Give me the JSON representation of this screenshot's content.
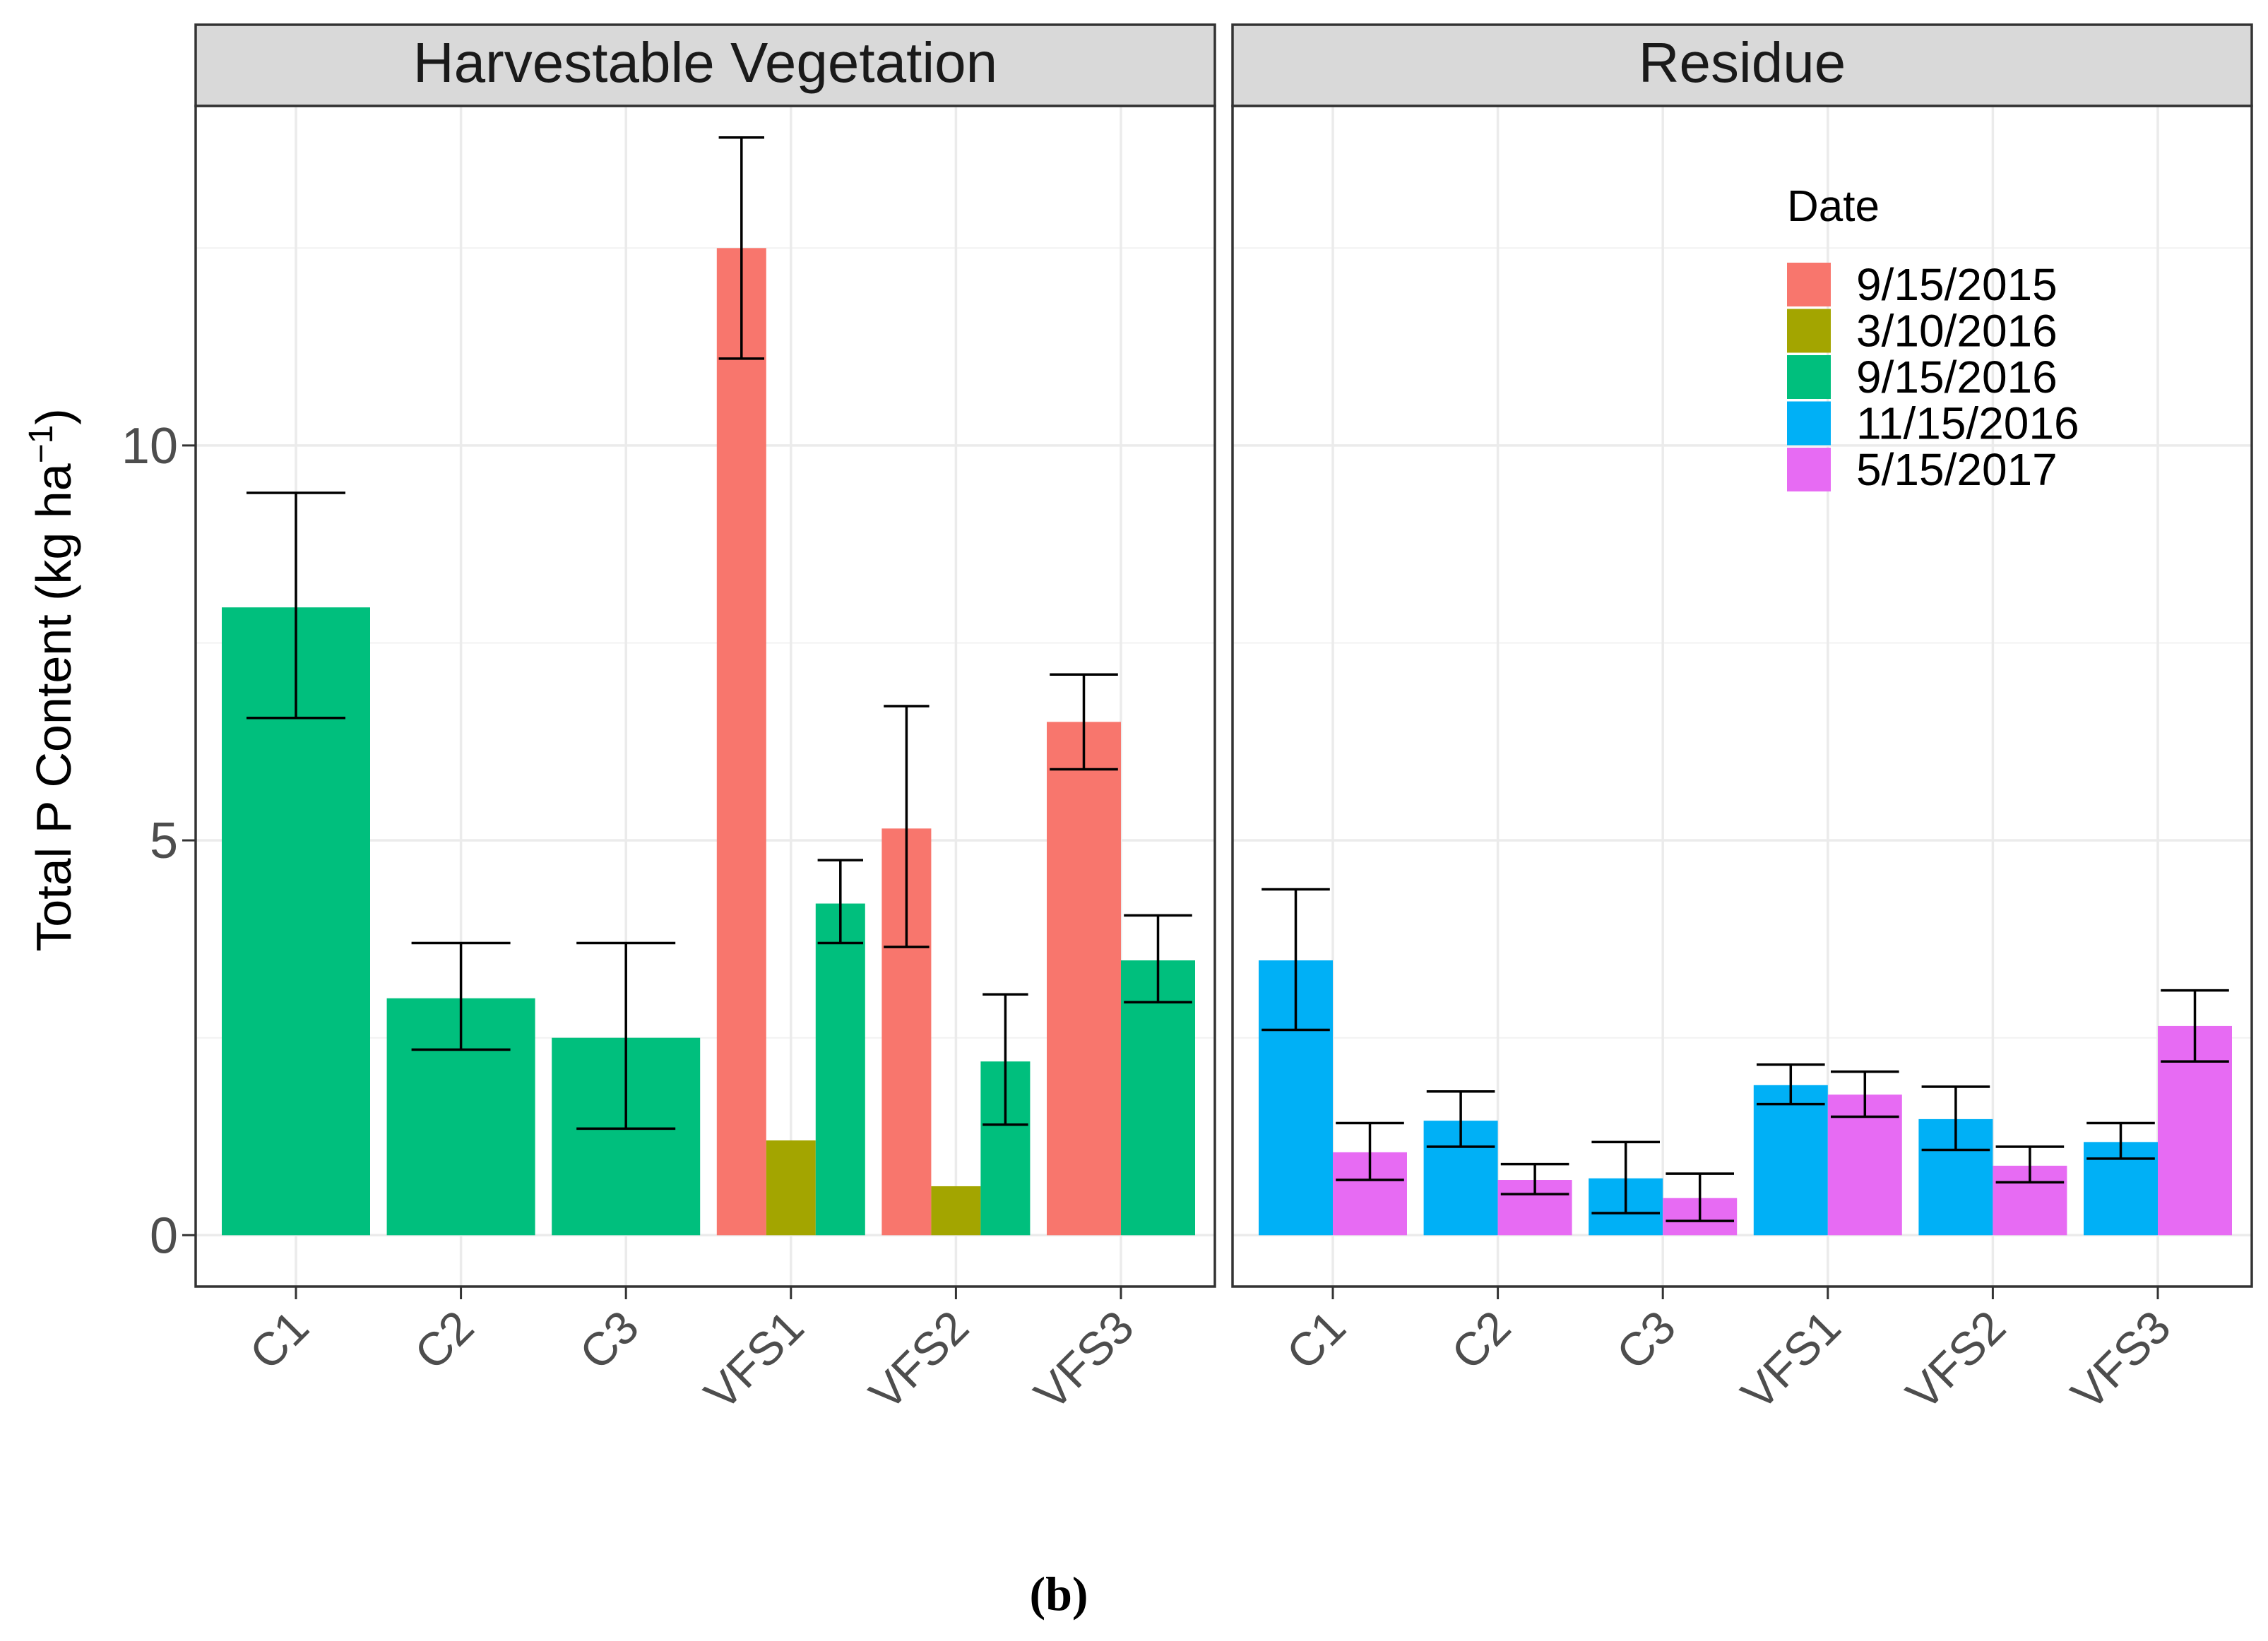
{
  "chart_data": {
    "type": "bar",
    "ylabel": "Total P Content (kg ha",
    "ylabel_superscript": "−1",
    "ylabel_close": ")",
    "ylim": [
      -0.65,
      14.3
    ],
    "yticks": [
      0,
      5,
      10
    ],
    "ytick_labels": [
      "0",
      "5",
      "10"
    ],
    "grid": true,
    "caption": "(b)",
    "legend": {
      "title": "Date",
      "placement": "top-right (inside Residue panel)",
      "entries": [
        {
          "label": "9/15/2015",
          "color": "#F8766D"
        },
        {
          "label": "3/10/2016",
          "color": "#A3A500"
        },
        {
          "label": "9/15/2016",
          "color": "#00BF7D"
        },
        {
          "label": "11/15/2016",
          "color": "#00B0F6"
        },
        {
          "label": "5/15/2017",
          "color": "#E76BF3"
        }
      ]
    },
    "categories": [
      "C1",
      "C2",
      "C3",
      "VFS1",
      "VFS2",
      "VFS3"
    ],
    "panels": [
      {
        "title": "Harvestable Vegetation",
        "bars": [
          {
            "category": "C1",
            "series": [
              "9/15/2016"
            ],
            "values": [
              7.95
            ],
            "err_low": [
              6.55
            ],
            "err_high": [
              9.4
            ]
          },
          {
            "category": "C2",
            "series": [
              "9/15/2016"
            ],
            "values": [
              3.0
            ],
            "err_low": [
              2.35
            ],
            "err_high": [
              3.7
            ]
          },
          {
            "category": "C3",
            "series": [
              "9/15/2016"
            ],
            "values": [
              2.5
            ],
            "err_low": [
              1.35
            ],
            "err_high": [
              3.7
            ]
          },
          {
            "category": "VFS1",
            "series": [
              "9/15/2015",
              "3/10/2016",
              "9/15/2016"
            ],
            "values": [
              12.5,
              1.2,
              4.2
            ],
            "err_low": [
              11.1,
              null,
              3.7
            ],
            "err_high": [
              13.9,
              null,
              4.75
            ]
          },
          {
            "category": "VFS2",
            "series": [
              "9/15/2015",
              "3/10/2016",
              "9/15/2016"
            ],
            "values": [
              5.15,
              0.62,
              2.2
            ],
            "err_low": [
              3.65,
              null,
              1.4
            ],
            "err_high": [
              6.7,
              null,
              3.05
            ]
          },
          {
            "category": "VFS3",
            "series": [
              "9/15/2015",
              "9/15/2016"
            ],
            "values": [
              6.5,
              3.48
            ],
            "err_low": [
              5.9,
              2.95
            ],
            "err_high": [
              7.1,
              4.05
            ]
          }
        ]
      },
      {
        "title": "Residue",
        "bars": [
          {
            "category": "C1",
            "series": [
              "11/15/2016",
              "5/15/2017"
            ],
            "values": [
              3.48,
              1.05
            ],
            "err_low": [
              2.6,
              0.7
            ],
            "err_high": [
              4.38,
              1.42
            ]
          },
          {
            "category": "C2",
            "series": [
              "11/15/2016",
              "5/15/2017"
            ],
            "values": [
              1.45,
              0.7
            ],
            "err_low": [
              1.12,
              0.52
            ],
            "err_high": [
              1.82,
              0.9
            ]
          },
          {
            "category": "C3",
            "series": [
              "11/15/2016",
              "5/15/2017"
            ],
            "values": [
              0.72,
              0.47
            ],
            "err_low": [
              0.28,
              0.18
            ],
            "err_high": [
              1.18,
              0.78
            ]
          },
          {
            "category": "VFS1",
            "series": [
              "11/15/2016",
              "5/15/2017"
            ],
            "values": [
              1.9,
              1.78
            ],
            "err_low": [
              1.66,
              1.5
            ],
            "err_high": [
              2.16,
              2.07
            ]
          },
          {
            "category": "VFS2",
            "series": [
              "11/15/2016",
              "5/15/2017"
            ],
            "values": [
              1.47,
              0.88
            ],
            "err_low": [
              1.08,
              0.67
            ],
            "err_high": [
              1.88,
              1.12
            ]
          },
          {
            "category": "VFS3",
            "series": [
              "11/15/2016",
              "5/15/2017"
            ],
            "values": [
              1.18,
              2.65
            ],
            "err_low": [
              0.97,
              2.2
            ],
            "err_high": [
              1.42,
              3.1
            ]
          }
        ]
      }
    ]
  }
}
